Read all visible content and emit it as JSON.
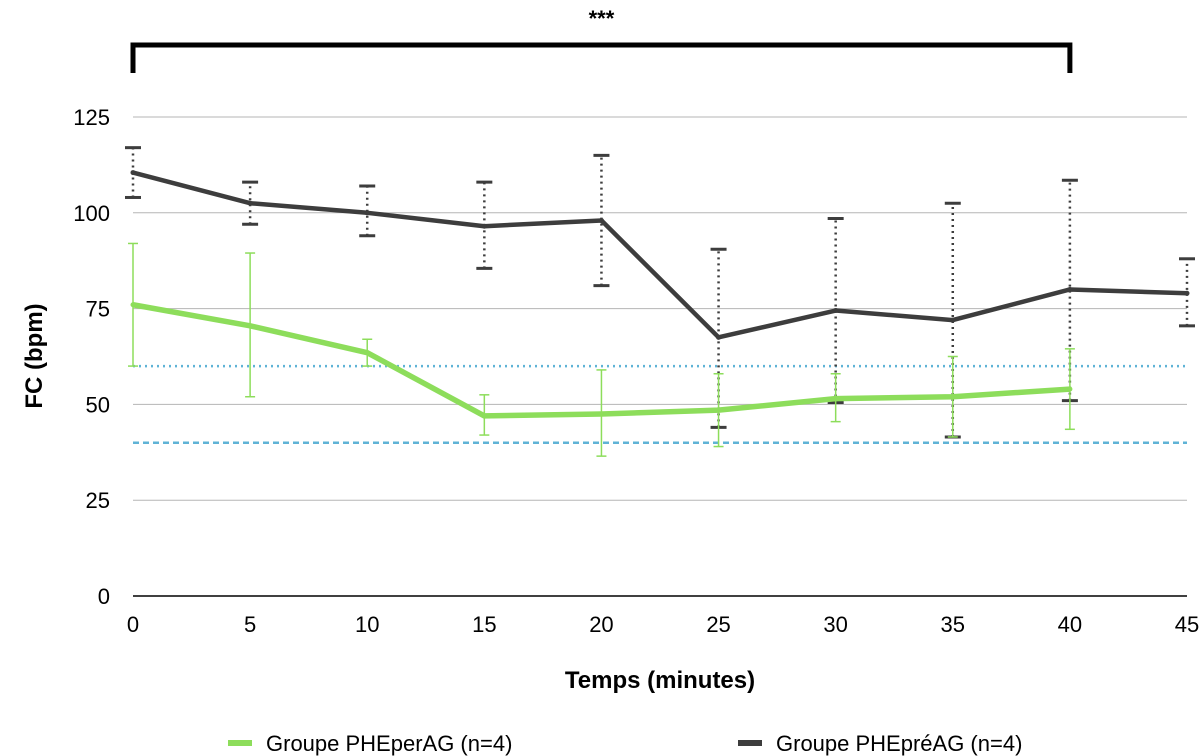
{
  "chart_data": {
    "type": "line",
    "title": "",
    "xlabel": "Temps (minutes)",
    "ylabel": "FC (bpm)",
    "xlim": [
      0,
      45
    ],
    "ylim": [
      0,
      125
    ],
    "x_ticks": [
      "0",
      "5",
      "10",
      "15",
      "20",
      "25",
      "30",
      "35",
      "40",
      "45"
    ],
    "y_ticks": [
      "0",
      "25",
      "50",
      "75",
      "100",
      "125"
    ],
    "grid": true,
    "legend_position": "bottom",
    "significance": {
      "label": "***",
      "from_x": 0,
      "to_x": 40
    },
    "reference_lines": [
      {
        "y": 60,
        "color": "#5fb3d6",
        "style": "dotted"
      },
      {
        "y": 40,
        "color": "#5fb3d6",
        "style": "dashed"
      }
    ],
    "series": [
      {
        "name": "Groupe PHEperAG (n=4)",
        "color": "#8ddd5b",
        "x": [
          0,
          5,
          10,
          15,
          20,
          25,
          30,
          35,
          40
        ],
        "y": [
          76,
          70.5,
          63.5,
          47,
          47.5,
          48.5,
          51.5,
          52,
          54
        ],
        "err_low": [
          60,
          52,
          60,
          42,
          36.5,
          39,
          45.5,
          41.5,
          43.5
        ],
        "err_high": [
          92,
          89.5,
          67,
          52.5,
          59,
          58,
          58,
          62.5,
          64.5
        ]
      },
      {
        "name": "Groupe PHEpréAG (n=4)",
        "color": "#3d3d3d",
        "x": [
          0,
          5,
          10,
          15,
          20,
          25,
          30,
          35,
          40,
          45
        ],
        "y": [
          110.5,
          102.5,
          100,
          96.5,
          98,
          67.5,
          74.5,
          72,
          80,
          79
        ],
        "err_low": [
          104,
          97,
          94,
          85.5,
          81,
          44,
          50.5,
          41.5,
          51,
          70.5
        ],
        "err_high": [
          117,
          108,
          107,
          108,
          115,
          90.5,
          98.5,
          102.5,
          108.5,
          88
        ]
      }
    ]
  }
}
